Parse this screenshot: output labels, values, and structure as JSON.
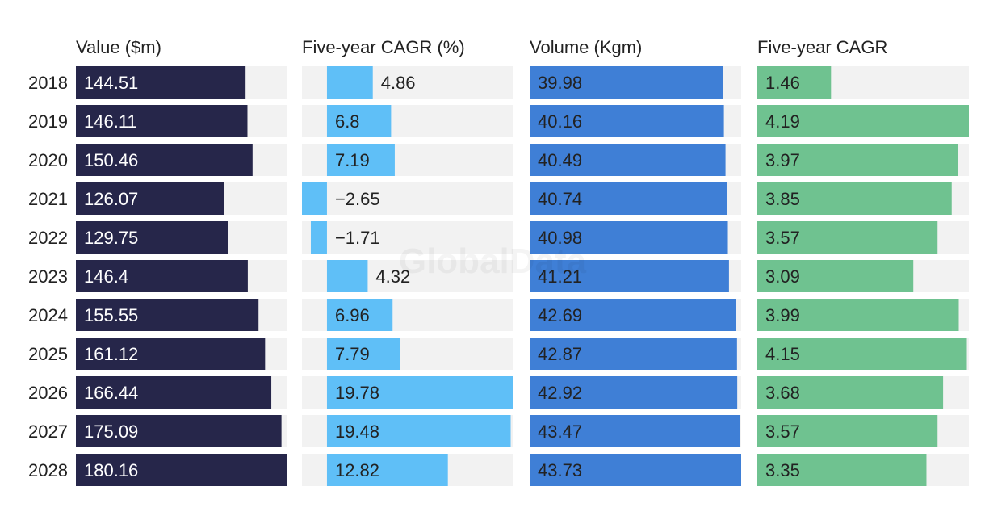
{
  "watermark": "GlobalData",
  "colors": {
    "track": "#f2f2f2",
    "value": "#26264a",
    "value_cagr": "#5fbff7",
    "volume": "#3f7fd6",
    "volume_cagr": "#6fc290",
    "label_light": "#ffffff",
    "label_dark": "#222222",
    "axis_text": "#222222"
  },
  "chart_data": [
    {
      "type": "bar",
      "orientation": "horizontal",
      "title": "Value ($m)",
      "categories": [
        "2018",
        "2019",
        "2020",
        "2021",
        "2022",
        "2023",
        "2024",
        "2025",
        "2026",
        "2027",
        "2028"
      ],
      "values": [
        144.51,
        146.11,
        150.46,
        126.07,
        129.75,
        146.4,
        155.55,
        161.12,
        166.44,
        175.09,
        180.16
      ],
      "labels": [
        "144.51",
        "146.11",
        "150.46",
        "126.07",
        "129.75",
        "146.4",
        "155.55",
        "161.12",
        "166.44",
        "175.09",
        "180.16"
      ],
      "xlim": [
        0,
        180.16
      ],
      "grid": false
    },
    {
      "type": "bar",
      "orientation": "horizontal",
      "title": "Five-year CAGR (%)",
      "categories": [
        "2018",
        "2019",
        "2020",
        "2021",
        "2022",
        "2023",
        "2024",
        "2025",
        "2026",
        "2027",
        "2028"
      ],
      "values": [
        4.86,
        6.8,
        7.19,
        -2.65,
        -1.71,
        4.32,
        6.96,
        7.79,
        19.78,
        19.48,
        12.82
      ],
      "labels": [
        "4.86",
        "6.8",
        "7.19",
        "−2.65",
        "−1.71",
        "4.32",
        "6.96",
        "7.79",
        "19.78",
        "19.48",
        "12.82"
      ],
      "xlim": [
        -2.65,
        19.78
      ],
      "grid": false
    },
    {
      "type": "bar",
      "orientation": "horizontal",
      "title": "Volume (Kgm)",
      "categories": [
        "2018",
        "2019",
        "2020",
        "2021",
        "2022",
        "2023",
        "2024",
        "2025",
        "2026",
        "2027",
        "2028"
      ],
      "values": [
        39.98,
        40.16,
        40.49,
        40.74,
        40.98,
        41.21,
        42.69,
        42.87,
        42.92,
        43.47,
        43.73
      ],
      "labels": [
        "39.98",
        "40.16",
        "40.49",
        "40.74",
        "40.98",
        "41.21",
        "42.69",
        "42.87",
        "42.92",
        "43.47",
        "43.73"
      ],
      "xlim": [
        0,
        43.73
      ],
      "grid": false
    },
    {
      "type": "bar",
      "orientation": "horizontal",
      "title": "Five-year CAGR",
      "categories": [
        "2018",
        "2019",
        "2020",
        "2021",
        "2022",
        "2023",
        "2024",
        "2025",
        "2026",
        "2027",
        "2028"
      ],
      "values": [
        1.46,
        4.19,
        3.97,
        3.85,
        3.57,
        3.09,
        3.99,
        4.15,
        3.68,
        3.57,
        3.35
      ],
      "labels": [
        "1.46",
        "4.19",
        "3.97",
        "3.85",
        "3.57",
        "3.09",
        "3.99",
        "4.15",
        "3.68",
        "3.57",
        "3.35"
      ],
      "xlim": [
        0,
        4.19
      ],
      "grid": false
    }
  ]
}
